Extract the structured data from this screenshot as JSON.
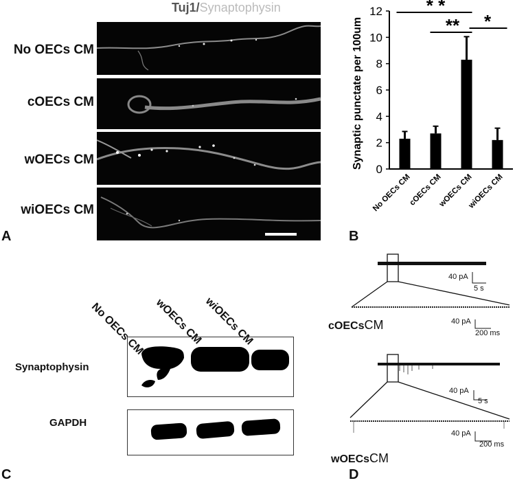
{
  "panel_a": {
    "letter": "A",
    "title_tuj1": "Tuj1/",
    "title_syn": "Synaptophysin",
    "rows": [
      "No OECs CM",
      "cOECs CM",
      "wOECs CM",
      "wiOECs CM"
    ]
  },
  "panel_b": {
    "letter": "B",
    "significance": [
      "* *",
      "**",
      "*"
    ]
  },
  "chart_data": {
    "type": "bar",
    "categories": [
      "No OECs CM",
      "cOECs CM",
      "wOECs CM",
      "wiOECs CM"
    ],
    "values": [
      2.3,
      2.7,
      8.3,
      2.2
    ],
    "errors": [
      0.55,
      0.55,
      1.75,
      0.9
    ],
    "ylabel": "Synaptic punctate per 100um",
    "ylim": [
      0,
      12
    ],
    "yticks": [
      0,
      2,
      4,
      6,
      8,
      10,
      12
    ],
    "grid": false,
    "bar_color": "#000000"
  },
  "panel_c": {
    "letter": "C",
    "lanes": [
      "No OECs CM",
      "wOECs CM",
      "wiOECs CM"
    ],
    "blots": [
      "Synaptophysin",
      "GAPDH"
    ]
  },
  "panel_d": {
    "letter": "D",
    "trace1_label": "cOECs",
    "trace1_suffix": "CM",
    "trace2_label": "wOECs",
    "trace2_suffix": "CM",
    "scale_amp": "40 pA",
    "scale_time_long": "5 s",
    "scale_time_short": "200 ms"
  }
}
